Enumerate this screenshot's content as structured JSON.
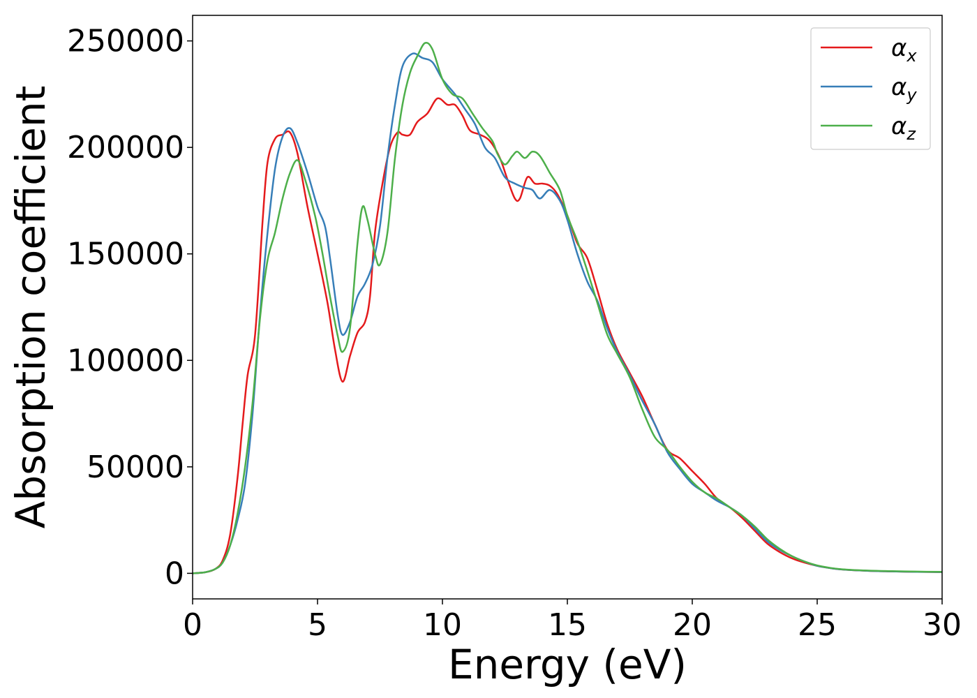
{
  "chart_data": {
    "type": "line",
    "title": "",
    "xlabel": "Energy (eV)",
    "ylabel": "Absorption coefficient",
    "xlim": [
      0,
      30
    ],
    "ylim": [
      -12000,
      262000
    ],
    "xticks": [
      0,
      5,
      10,
      15,
      20,
      25,
      30
    ],
    "xtick_labels": [
      "0",
      "5",
      "10",
      "15",
      "20",
      "25",
      "30"
    ],
    "yticks": [
      0,
      50000,
      100000,
      150000,
      200000,
      250000
    ],
    "ytick_labels": [
      "0",
      "50000",
      "100000",
      "150000",
      "200000",
      "250000"
    ],
    "grid": false,
    "legend_position": "top-right",
    "series": [
      {
        "name": "α",
        "subscript": "x",
        "color": "#e41a1c",
        "points": [
          [
            0,
            0
          ],
          [
            0.5,
            500
          ],
          [
            0.9,
            2000
          ],
          [
            1.2,
            6000
          ],
          [
            1.5,
            18000
          ],
          [
            1.8,
            45000
          ],
          [
            2.0,
            70000
          ],
          [
            2.2,
            93000
          ],
          [
            2.5,
            112000
          ],
          [
            2.8,
            165000
          ],
          [
            3.0,
            193000
          ],
          [
            3.3,
            204000
          ],
          [
            3.6,
            206000
          ],
          [
            3.9,
            207000
          ],
          [
            4.2,
            197000
          ],
          [
            4.6,
            172000
          ],
          [
            5.0,
            150000
          ],
          [
            5.4,
            127000
          ],
          [
            5.7,
            105000
          ],
          [
            6.0,
            90000
          ],
          [
            6.3,
            102000
          ],
          [
            6.6,
            113000
          ],
          [
            6.9,
            118000
          ],
          [
            7.1,
            130000
          ],
          [
            7.3,
            160000
          ],
          [
            7.6,
            183000
          ],
          [
            7.9,
            200000
          ],
          [
            8.2,
            207000
          ],
          [
            8.4,
            206000
          ],
          [
            8.7,
            206000
          ],
          [
            9.0,
            212000
          ],
          [
            9.4,
            216000
          ],
          [
            9.8,
            223000
          ],
          [
            10.2,
            220000
          ],
          [
            10.5,
            220000
          ],
          [
            10.8,
            215000
          ],
          [
            11.1,
            208000
          ],
          [
            11.5,
            206000
          ],
          [
            11.9,
            203000
          ],
          [
            12.3,
            195000
          ],
          [
            12.6,
            185000
          ],
          [
            12.9,
            176000
          ],
          [
            13.1,
            176000
          ],
          [
            13.4,
            186000
          ],
          [
            13.7,
            183000
          ],
          [
            14.0,
            183000
          ],
          [
            14.3,
            182000
          ],
          [
            14.6,
            178000
          ],
          [
            15.0,
            168000
          ],
          [
            15.4,
            155000
          ],
          [
            15.8,
            148000
          ],
          [
            16.2,
            133000
          ],
          [
            16.6,
            117000
          ],
          [
            17.0,
            105000
          ],
          [
            17.5,
            94000
          ],
          [
            18.0,
            83000
          ],
          [
            18.5,
            70000
          ],
          [
            19.0,
            58000
          ],
          [
            19.5,
            54000
          ],
          [
            20.0,
            48000
          ],
          [
            20.5,
            42000
          ],
          [
            21.0,
            35000
          ],
          [
            21.5,
            31000
          ],
          [
            22.0,
            26000
          ],
          [
            22.5,
            20000
          ],
          [
            23.0,
            14000
          ],
          [
            23.5,
            10000
          ],
          [
            24.0,
            7000
          ],
          [
            24.5,
            5000
          ],
          [
            25.0,
            3500
          ],
          [
            25.5,
            2500
          ],
          [
            26.0,
            1800
          ],
          [
            27.0,
            1200
          ],
          [
            28.0,
            900
          ],
          [
            29.0,
            700
          ],
          [
            30.0,
            600
          ]
        ]
      },
      {
        "name": "α",
        "subscript": "y",
        "color": "#377eb8",
        "points": [
          [
            0,
            0
          ],
          [
            0.5,
            500
          ],
          [
            0.9,
            2000
          ],
          [
            1.2,
            5000
          ],
          [
            1.5,
            13000
          ],
          [
            1.8,
            25000
          ],
          [
            2.1,
            42000
          ],
          [
            2.4,
            75000
          ],
          [
            2.7,
            122000
          ],
          [
            3.0,
            160000
          ],
          [
            3.3,
            190000
          ],
          [
            3.6,
            205000
          ],
          [
            3.9,
            209000
          ],
          [
            4.2,
            202000
          ],
          [
            4.6,
            188000
          ],
          [
            5.0,
            172000
          ],
          [
            5.3,
            163000
          ],
          [
            5.5,
            148000
          ],
          [
            5.8,
            122000
          ],
          [
            6.0,
            112000
          ],
          [
            6.3,
            118000
          ],
          [
            6.6,
            130000
          ],
          [
            6.9,
            136000
          ],
          [
            7.2,
            145000
          ],
          [
            7.5,
            163000
          ],
          [
            7.8,
            195000
          ],
          [
            8.1,
            220000
          ],
          [
            8.4,
            238000
          ],
          [
            8.8,
            244000
          ],
          [
            9.2,
            242000
          ],
          [
            9.6,
            240000
          ],
          [
            10.0,
            232000
          ],
          [
            10.5,
            225000
          ],
          [
            10.9,
            218000
          ],
          [
            11.3,
            211000
          ],
          [
            11.7,
            200000
          ],
          [
            12.1,
            195000
          ],
          [
            12.5,
            186000
          ],
          [
            12.9,
            183000
          ],
          [
            13.3,
            181000
          ],
          [
            13.6,
            180000
          ],
          [
            13.9,
            176000
          ],
          [
            14.3,
            180000
          ],
          [
            14.7,
            175000
          ],
          [
            15.0,
            166000
          ],
          [
            15.4,
            150000
          ],
          [
            15.8,
            137000
          ],
          [
            16.2,
            128000
          ],
          [
            16.6,
            115000
          ],
          [
            17.0,
            104000
          ],
          [
            17.5,
            93000
          ],
          [
            18.0,
            81000
          ],
          [
            18.5,
            70000
          ],
          [
            19.0,
            57000
          ],
          [
            19.5,
            49000
          ],
          [
            20.0,
            42000
          ],
          [
            20.5,
            38000
          ],
          [
            21.0,
            34000
          ],
          [
            21.5,
            31000
          ],
          [
            22.0,
            27000
          ],
          [
            22.5,
            21000
          ],
          [
            23.0,
            15000
          ],
          [
            23.5,
            11000
          ],
          [
            24.0,
            8000
          ],
          [
            24.5,
            5500
          ],
          [
            25.0,
            3500
          ],
          [
            25.5,
            2500
          ],
          [
            26.0,
            1800
          ],
          [
            27.0,
            1200
          ],
          [
            28.0,
            900
          ],
          [
            29.0,
            700
          ],
          [
            30.0,
            600
          ]
        ]
      },
      {
        "name": "α",
        "subscript": "z",
        "color": "#4daf4a",
        "points": [
          [
            0,
            0
          ],
          [
            0.5,
            500
          ],
          [
            0.9,
            2000
          ],
          [
            1.2,
            5000
          ],
          [
            1.5,
            13000
          ],
          [
            1.8,
            28000
          ],
          [
            2.1,
            50000
          ],
          [
            2.4,
            80000
          ],
          [
            2.7,
            120000
          ],
          [
            3.0,
            147000
          ],
          [
            3.3,
            160000
          ],
          [
            3.6,
            176000
          ],
          [
            3.9,
            188000
          ],
          [
            4.2,
            194000
          ],
          [
            4.5,
            185000
          ],
          [
            4.9,
            168000
          ],
          [
            5.2,
            150000
          ],
          [
            5.5,
            130000
          ],
          [
            5.8,
            112000
          ],
          [
            6.0,
            104000
          ],
          [
            6.3,
            115000
          ],
          [
            6.6,
            155000
          ],
          [
            6.8,
            172000
          ],
          [
            7.0,
            166000
          ],
          [
            7.3,
            150000
          ],
          [
            7.5,
            145000
          ],
          [
            7.8,
            160000
          ],
          [
            8.1,
            195000
          ],
          [
            8.4,
            220000
          ],
          [
            8.7,
            235000
          ],
          [
            9.0,
            243000
          ],
          [
            9.3,
            249000
          ],
          [
            9.6,
            246000
          ],
          [
            10.0,
            232000
          ],
          [
            10.4,
            225000
          ],
          [
            10.8,
            223000
          ],
          [
            11.2,
            216000
          ],
          [
            11.6,
            209000
          ],
          [
            12.0,
            203000
          ],
          [
            12.2,
            197000
          ],
          [
            12.5,
            192000
          ],
          [
            12.8,
            196000
          ],
          [
            13.0,
            198000
          ],
          [
            13.3,
            195000
          ],
          [
            13.6,
            198000
          ],
          [
            13.9,
            196000
          ],
          [
            14.3,
            188000
          ],
          [
            14.7,
            180000
          ],
          [
            15.0,
            168000
          ],
          [
            15.4,
            156000
          ],
          [
            15.8,
            142000
          ],
          [
            16.2,
            127000
          ],
          [
            16.6,
            112000
          ],
          [
            17.0,
            103000
          ],
          [
            17.5,
            92000
          ],
          [
            18.0,
            77000
          ],
          [
            18.5,
            64000
          ],
          [
            19.0,
            58000
          ],
          [
            19.5,
            50000
          ],
          [
            20.0,
            43000
          ],
          [
            20.5,
            38000
          ],
          [
            21.0,
            35000
          ],
          [
            21.5,
            31000
          ],
          [
            22.0,
            27000
          ],
          [
            22.5,
            22000
          ],
          [
            23.0,
            16000
          ],
          [
            23.5,
            11500
          ],
          [
            24.0,
            8000
          ],
          [
            24.5,
            5500
          ],
          [
            25.0,
            3700
          ],
          [
            25.5,
            2600
          ],
          [
            26.0,
            1900
          ],
          [
            27.0,
            1300
          ],
          [
            28.0,
            1000
          ],
          [
            29.0,
            800
          ],
          [
            30.0,
            700
          ]
        ]
      }
    ]
  }
}
